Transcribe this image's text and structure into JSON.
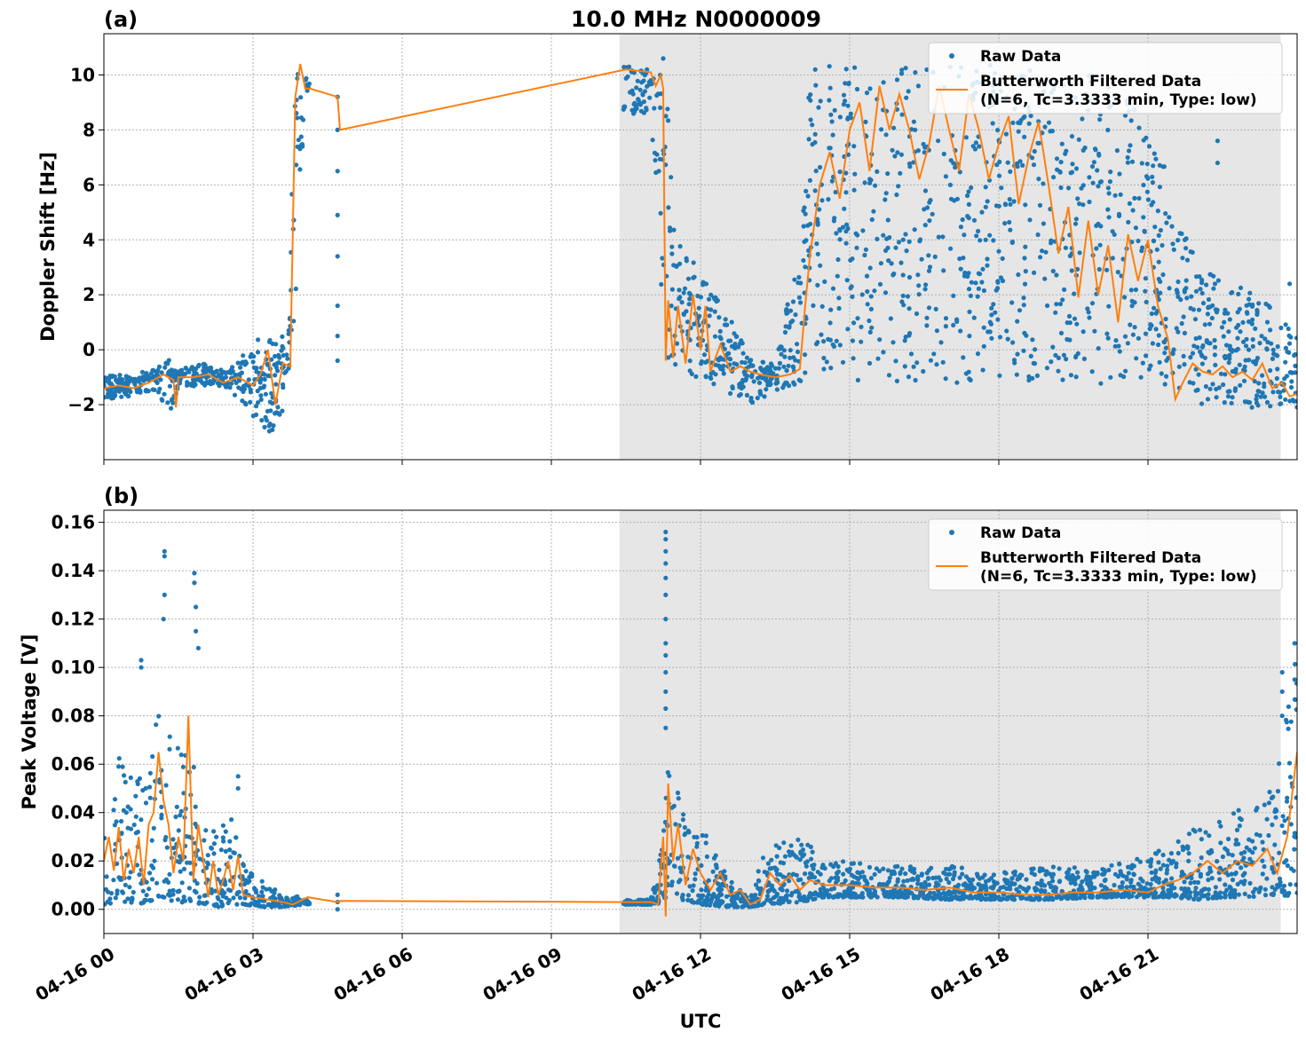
{
  "figure": {
    "title": "10.0 MHz N0000009",
    "xlabel": "UTC"
  },
  "colors": {
    "raw": "#1f77b4",
    "filtered": "#ff7f0e",
    "shade": "#e6e6e6",
    "grid": "#b0b0b0"
  },
  "legend": {
    "placement": "top-right",
    "raw_label": "Raw Data",
    "filtered_label_line1": "Butterworth Filtered Data",
    "filtered_label_line2": "(N=6, Tc=3.3333 min, Type: low)"
  },
  "chart_data": [
    {
      "type": "scatter",
      "panel_label": "(a)",
      "ylabel": "Doppler Shift [Hz]",
      "x_unit": "hours since 04-16 00:00 UTC",
      "xlim": [
        0,
        24
      ],
      "ylim": [
        -4,
        11.5
      ],
      "x_ticks": [
        0,
        3,
        6,
        9,
        12,
        15,
        18,
        21
      ],
      "x_tick_labels": [
        "04-16 00",
        "04-16 03",
        "04-16 06",
        "04-16 09",
        "04-16 12",
        "04-16 15",
        "04-16 18",
        "04-16 21"
      ],
      "y_ticks": [
        -2,
        0,
        2,
        4,
        6,
        8,
        10
      ],
      "y_tick_labels": [
        "−2",
        "0",
        "2",
        "4",
        "6",
        "8",
        "10"
      ],
      "grid": true,
      "shaded_span": [
        10.37,
        23.67
      ],
      "series": [
        {
          "name": "Raw Data",
          "style": "points",
          "envelope": [
            [
              0.0,
              -1.8,
              -0.9
            ],
            [
              0.5,
              -1.7,
              -0.9
            ],
            [
              1.0,
              -1.5,
              -0.6
            ],
            [
              1.4,
              -2.3,
              -0.3
            ],
            [
              1.5,
              -1.4,
              -0.7
            ],
            [
              2.0,
              -1.3,
              -0.5
            ],
            [
              2.5,
              -1.4,
              -0.8
            ],
            [
              3.0,
              -2.5,
              0.4
            ],
            [
              3.3,
              -3.2,
              0.5
            ],
            [
              3.7,
              -2.0,
              0.5
            ],
            [
              3.85,
              1.0,
              10.3
            ],
            [
              3.95,
              6.0,
              10.4
            ],
            [
              4.1,
              9.5,
              10.3
            ],
            [
              10.5,
              8.3,
              10.4
            ],
            [
              11.0,
              8.5,
              10.2
            ],
            [
              11.3,
              -0.8,
              10.0
            ],
            [
              11.5,
              -0.9,
              4.0
            ],
            [
              12.0,
              -1.0,
              3.0
            ],
            [
              12.5,
              -1.5,
              1.5
            ],
            [
              13.0,
              -2.0,
              -0.3
            ],
            [
              13.5,
              -1.5,
              -0.5
            ],
            [
              14.0,
              -1.2,
              4.0
            ],
            [
              14.2,
              -1.1,
              10.3
            ],
            [
              15.0,
              -1.1,
              10.4
            ],
            [
              16.0,
              -1.2,
              10.4
            ],
            [
              17.0,
              -1.2,
              10.3
            ],
            [
              18.0,
              -1.2,
              10.4
            ],
            [
              19.0,
              -1.2,
              10.3
            ],
            [
              20.0,
              -1.3,
              10.0
            ],
            [
              21.0,
              -1.5,
              8.5
            ],
            [
              21.5,
              -1.5,
              6.0
            ],
            [
              22.0,
              -2.0,
              3.0
            ],
            [
              22.5,
              -2.0,
              2.5
            ],
            [
              23.0,
              -2.1,
              2.2
            ],
            [
              23.5,
              -2.1,
              1.5
            ],
            [
              24.0,
              -2.1,
              0.5
            ]
          ],
          "isolated_points": [
            [
              4.7,
              9.2
            ],
            [
              4.7,
              8.0
            ],
            [
              4.7,
              6.5
            ],
            [
              4.7,
              4.9
            ],
            [
              4.7,
              3.4
            ],
            [
              4.7,
              1.6
            ],
            [
              4.7,
              0.5
            ],
            [
              4.7,
              -0.4
            ],
            [
              11.25,
              10.6
            ],
            [
              11.0,
              9.8
            ],
            [
              22.4,
              7.6
            ],
            [
              22.4,
              6.8
            ],
            [
              23.85,
              2.4
            ]
          ]
        },
        {
          "name": "Butterworth Filtered Data",
          "style": "line",
          "x": [
            0.0,
            0.3,
            0.6,
            0.9,
            1.2,
            1.4,
            1.45,
            1.5,
            1.8,
            2.1,
            2.4,
            2.7,
            3.0,
            3.15,
            3.3,
            3.45,
            3.6,
            3.75,
            3.85,
            3.95,
            4.05,
            4.15,
            4.7,
            4.75,
            10.5,
            11.0,
            11.1,
            11.2,
            11.25,
            11.3,
            11.35,
            11.45,
            11.55,
            11.7,
            11.85,
            12.0,
            12.1,
            12.2,
            12.4,
            12.6,
            12.8,
            13.0,
            13.2,
            13.5,
            13.8,
            14.0,
            14.1,
            14.2,
            14.4,
            14.6,
            14.8,
            15.0,
            15.2,
            15.4,
            15.6,
            15.8,
            16.0,
            16.2,
            16.4,
            16.6,
            16.8,
            17.0,
            17.2,
            17.4,
            17.6,
            17.8,
            18.0,
            18.2,
            18.4,
            18.6,
            18.8,
            19.0,
            19.2,
            19.4,
            19.6,
            19.8,
            20.0,
            20.2,
            20.4,
            20.6,
            20.8,
            21.0,
            21.2,
            21.4,
            21.55,
            21.7,
            21.9,
            22.1,
            22.3,
            22.5,
            22.7,
            22.9,
            23.1,
            23.3,
            23.5,
            23.7,
            23.85,
            24.0
          ],
          "y": [
            -1.4,
            -1.3,
            -1.4,
            -1.2,
            -0.9,
            -1.1,
            -2.1,
            -1.0,
            -1.0,
            -0.9,
            -1.2,
            -1.0,
            -1.3,
            -0.9,
            0.0,
            -2.0,
            -0.5,
            -0.6,
            9.2,
            10.4,
            9.5,
            9.5,
            9.2,
            8.0,
            10.2,
            10.1,
            9.6,
            10.0,
            9.5,
            -0.4,
            1.8,
            -0.3,
            1.6,
            -0.5,
            2.0,
            0.0,
            1.6,
            -0.8,
            0.2,
            -0.8,
            -0.6,
            -0.8,
            -0.9,
            -1.0,
            -0.9,
            -0.7,
            1.5,
            3.4,
            6.0,
            7.2,
            5.5,
            8.0,
            9.0,
            6.5,
            9.6,
            8.0,
            9.3,
            8.0,
            6.2,
            7.5,
            9.6,
            8.0,
            6.5,
            9.3,
            8.0,
            6.2,
            7.5,
            8.5,
            5.3,
            7.0,
            8.3,
            6.0,
            3.5,
            5.2,
            1.9,
            4.7,
            2.0,
            3.8,
            1.0,
            4.2,
            2.5,
            4.0,
            1.6,
            0.4,
            -1.8,
            -1.2,
            -0.5,
            -0.8,
            -0.9,
            -0.6,
            -1.0,
            -0.8,
            -1.1,
            -0.5,
            -1.4,
            -1.2,
            -1.7,
            -1.6
          ]
        }
      ]
    },
    {
      "type": "scatter",
      "panel_label": "(b)",
      "ylabel": "Peak Voltage [V]",
      "x_unit": "hours since 04-16 00:00 UTC",
      "xlim": [
        0,
        24
      ],
      "ylim": [
        -0.01,
        0.165
      ],
      "x_ticks": [
        0,
        3,
        6,
        9,
        12,
        15,
        18,
        21
      ],
      "x_tick_labels": [
        "04-16 00",
        "04-16 03",
        "04-16 06",
        "04-16 09",
        "04-16 12",
        "04-16 15",
        "04-16 18",
        "04-16 21"
      ],
      "y_ticks": [
        0.0,
        0.02,
        0.04,
        0.06,
        0.08,
        0.1,
        0.12,
        0.14,
        0.16
      ],
      "y_tick_labels": [
        "0.00",
        "0.02",
        "0.04",
        "0.06",
        "0.08",
        "0.10",
        "0.12",
        "0.14",
        "0.16"
      ],
      "grid": true,
      "shaded_span": [
        10.37,
        23.67
      ],
      "series": [
        {
          "name": "Raw Data",
          "style": "points",
          "envelope": [
            [
              0.0,
              0.002,
              0.063
            ],
            [
              0.3,
              0.003,
              0.07
            ],
            [
              0.6,
              0.002,
              0.052
            ],
            [
              0.9,
              0.003,
              0.06
            ],
            [
              1.1,
              0.005,
              0.105
            ],
            [
              1.2,
              0.005,
              0.08
            ],
            [
              1.5,
              0.002,
              0.068
            ],
            [
              1.8,
              0.003,
              0.08
            ],
            [
              2.0,
              0.002,
              0.045
            ],
            [
              2.3,
              0.001,
              0.03
            ],
            [
              2.6,
              0.002,
              0.045
            ],
            [
              2.8,
              0.002,
              0.02
            ],
            [
              3.2,
              0.001,
              0.012
            ],
            [
              3.6,
              0.001,
              0.006
            ],
            [
              4.0,
              0.002,
              0.005
            ],
            [
              10.5,
              0.002,
              0.004
            ],
            [
              11.0,
              0.002,
              0.004
            ],
            [
              11.25,
              0.002,
              0.03
            ],
            [
              11.35,
              0.008,
              0.063
            ],
            [
              11.6,
              0.004,
              0.045
            ],
            [
              12.0,
              0.002,
              0.035
            ],
            [
              12.5,
              0.001,
              0.015
            ],
            [
              13.0,
              0.001,
              0.005
            ],
            [
              13.3,
              0.002,
              0.025
            ],
            [
              14.0,
              0.003,
              0.03
            ],
            [
              14.5,
              0.005,
              0.022
            ],
            [
              15.0,
              0.005,
              0.02
            ],
            [
              16.0,
              0.005,
              0.018
            ],
            [
              17.0,
              0.004,
              0.018
            ],
            [
              18.0,
              0.004,
              0.015
            ],
            [
              19.0,
              0.004,
              0.018
            ],
            [
              20.0,
              0.005,
              0.017
            ],
            [
              21.0,
              0.005,
              0.022
            ],
            [
              21.5,
              0.005,
              0.027
            ],
            [
              22.0,
              0.004,
              0.035
            ],
            [
              22.5,
              0.005,
              0.04
            ],
            [
              23.0,
              0.005,
              0.042
            ],
            [
              23.5,
              0.006,
              0.05
            ],
            [
              24.0,
              0.005,
              0.11
            ]
          ],
          "isolated_points": [
            [
              0.75,
              0.103
            ],
            [
              0.75,
              0.1
            ],
            [
              1.22,
              0.148
            ],
            [
              1.22,
              0.146
            ],
            [
              1.22,
              0.13
            ],
            [
              1.2,
              0.12
            ],
            [
              1.82,
              0.139
            ],
            [
              1.82,
              0.135
            ],
            [
              1.85,
              0.125
            ],
            [
              1.85,
              0.115
            ],
            [
              1.9,
              0.108
            ],
            [
              2.7,
              0.055
            ],
            [
              2.7,
              0.05
            ],
            [
              4.7,
              0.006
            ],
            [
              4.7,
              0.003
            ],
            [
              4.7,
              0.0
            ],
            [
              11.3,
              0.156
            ],
            [
              11.3,
              0.153
            ],
            [
              11.3,
              0.148
            ],
            [
              11.3,
              0.143
            ],
            [
              11.3,
              0.137
            ],
            [
              11.3,
              0.13
            ],
            [
              11.3,
              0.12
            ],
            [
              11.3,
              0.11
            ],
            [
              11.3,
              0.105
            ],
            [
              11.3,
              0.098
            ],
            [
              11.3,
              0.09
            ],
            [
              11.3,
              0.083
            ],
            [
              11.3,
              0.075
            ],
            [
              23.7,
              0.098
            ],
            [
              23.7,
              0.09
            ],
            [
              23.7,
              0.08
            ],
            [
              23.95,
              0.11
            ],
            [
              23.95,
              0.095
            ]
          ]
        },
        {
          "name": "Butterworth Filtered Data",
          "style": "line",
          "x": [
            0.0,
            0.1,
            0.2,
            0.3,
            0.4,
            0.5,
            0.6,
            0.7,
            0.8,
            0.9,
            1.0,
            1.1,
            1.2,
            1.3,
            1.4,
            1.5,
            1.6,
            1.7,
            1.8,
            1.9,
            2.0,
            2.1,
            2.2,
            2.3,
            2.4,
            2.5,
            2.6,
            2.7,
            2.8,
            3.0,
            3.3,
            3.6,
            3.8,
            4.0,
            4.1,
            4.7,
            4.75,
            10.5,
            11.0,
            11.15,
            11.25,
            11.3,
            11.35,
            11.45,
            11.55,
            11.7,
            11.85,
            12.0,
            12.2,
            12.4,
            12.6,
            12.8,
            13.0,
            13.2,
            13.4,
            13.6,
            13.8,
            14.0,
            14.2,
            14.5,
            15.0,
            15.5,
            16.0,
            16.5,
            17.0,
            17.5,
            18.0,
            18.5,
            19.0,
            19.5,
            20.0,
            20.5,
            21.0,
            21.3,
            21.6,
            21.9,
            22.2,
            22.5,
            22.8,
            23.1,
            23.4,
            23.6,
            23.8,
            24.0
          ],
          "y": [
            0.02,
            0.03,
            0.016,
            0.034,
            0.012,
            0.025,
            0.015,
            0.03,
            0.01,
            0.035,
            0.04,
            0.065,
            0.045,
            0.035,
            0.015,
            0.03,
            0.02,
            0.08,
            0.012,
            0.035,
            0.02,
            0.005,
            0.02,
            0.006,
            0.012,
            0.02,
            0.008,
            0.022,
            0.006,
            0.005,
            0.004,
            0.003,
            0.002,
            0.004,
            0.005,
            0.003,
            0.0035,
            0.003,
            0.003,
            0.002,
            0.03,
            -0.003,
            0.052,
            0.02,
            0.035,
            0.01,
            0.025,
            0.015,
            0.008,
            0.015,
            0.006,
            0.008,
            0.002,
            0.004,
            0.015,
            0.01,
            0.014,
            0.008,
            0.012,
            0.01,
            0.01,
            0.009,
            0.009,
            0.008,
            0.009,
            0.007,
            0.007,
            0.006,
            0.006,
            0.007,
            0.007,
            0.008,
            0.007,
            0.01,
            0.012,
            0.015,
            0.02,
            0.015,
            0.02,
            0.018,
            0.025,
            0.015,
            0.03,
            0.065
          ]
        }
      ]
    }
  ]
}
